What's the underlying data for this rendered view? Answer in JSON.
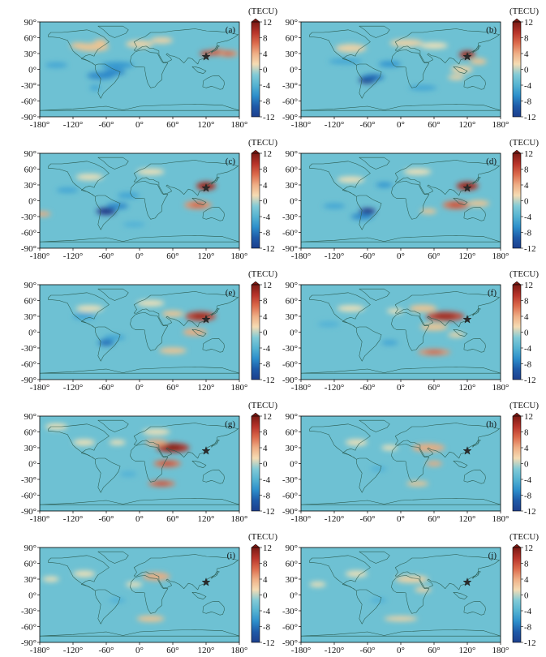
{
  "figure": {
    "colorbar_label": "(TECU)",
    "colorbar_ticks": [
      12,
      8,
      4,
      0,
      -4,
      -8,
      -12
    ],
    "colorbar_colors": [
      "#7a1a14",
      "#b8342a",
      "#dc6a4c",
      "#efae85",
      "#f5dcb4",
      "#82cbd7",
      "#55b3d2",
      "#2d8fcb",
      "#1e5aa8",
      "#1d3f8d"
    ],
    "map_background": "#6ec1d3",
    "coastline_color": "#2a5a4e",
    "epicenter_marker": "star",
    "x_ticks": [
      "-180°",
      "-120°",
      "-60°",
      "0°",
      "60°",
      "120°",
      "180°"
    ],
    "y_ticks": [
      "90°",
      "60°",
      "30°",
      "0°",
      "-30°",
      "-60°",
      "-90°"
    ]
  },
  "chart_data": [
    {
      "type": "heatmap",
      "panel": "(a)",
      "xlabel": "",
      "ylabel": "",
      "xlim": [
        -180,
        180
      ],
      "ylim": [
        -90,
        90
      ],
      "clim": [
        -12,
        12
      ],
      "epicenter": [
        120,
        24
      ],
      "blobs": [
        [
          -85,
          42,
          30,
          8,
          4
        ],
        [
          -110,
          45,
          15,
          6,
          4
        ],
        [
          -70,
          52,
          12,
          5,
          4
        ],
        [
          0,
          48,
          25,
          7,
          3
        ],
        [
          40,
          55,
          20,
          6,
          3
        ],
        [
          -40,
          8,
          30,
          6,
          -4
        ],
        [
          -70,
          -12,
          25,
          7,
          -5
        ],
        [
          -45,
          -5,
          20,
          6,
          -5
        ],
        [
          -150,
          8,
          20,
          5,
          -3
        ],
        [
          140,
          32,
          20,
          6,
          7
        ],
        [
          160,
          30,
          18,
          6,
          6
        ],
        [
          120,
          30,
          12,
          5,
          8
        ],
        [
          -80,
          -35,
          10,
          5,
          -3
        ]
      ]
    },
    {
      "type": "heatmap",
      "panel": "(b)",
      "xlabel": "",
      "ylabel": "",
      "xlim": [
        -180,
        180
      ],
      "ylim": [
        -90,
        90
      ],
      "clim": [
        -12,
        12
      ],
      "epicenter": [
        120,
        24
      ],
      "blobs": [
        [
          -90,
          40,
          28,
          8,
          3
        ],
        [
          10,
          50,
          30,
          7,
          3
        ],
        [
          60,
          45,
          25,
          6,
          2
        ],
        [
          120,
          28,
          15,
          7,
          10
        ],
        [
          140,
          15,
          15,
          6,
          4
        ],
        [
          110,
          0,
          20,
          7,
          3
        ],
        [
          100,
          -15,
          15,
          5,
          3
        ],
        [
          -60,
          -20,
          15,
          7,
          -11
        ],
        [
          -50,
          -15,
          20,
          6,
          -6
        ],
        [
          -20,
          10,
          20,
          6,
          -4
        ],
        [
          -100,
          15,
          30,
          5,
          -3
        ],
        [
          40,
          -35,
          25,
          5,
          -3
        ]
      ]
    },
    {
      "type": "heatmap",
      "panel": "(c)",
      "xlabel": "",
      "ylabel": "",
      "xlim": [
        -180,
        180
      ],
      "ylim": [
        -90,
        90
      ],
      "clim": [
        -12,
        12
      ],
      "epicenter": [
        120,
        24
      ],
      "blobs": [
        [
          120,
          28,
          18,
          8,
          10
        ],
        [
          105,
          -8,
          25,
          8,
          6
        ],
        [
          -60,
          -20,
          18,
          7,
          -10
        ],
        [
          -40,
          -10,
          20,
          6,
          -5
        ],
        [
          -175,
          -25,
          15,
          5,
          5
        ],
        [
          -90,
          45,
          25,
          6,
          2
        ],
        [
          20,
          55,
          25,
          6,
          2
        ],
        [
          -130,
          20,
          20,
          5,
          -3
        ],
        [
          -20,
          10,
          20,
          6,
          -3
        ],
        [
          -10,
          -45,
          20,
          5,
          -2
        ]
      ]
    },
    {
      "type": "heatmap",
      "panel": "(d)",
      "xlabel": "",
      "ylabel": "",
      "xlim": [
        -180,
        180
      ],
      "ylim": [
        -90,
        90
      ],
      "clim": [
        -12,
        12
      ],
      "epicenter": [
        120,
        24
      ],
      "blobs": [
        [
          120,
          28,
          20,
          8,
          10
        ],
        [
          100,
          -8,
          25,
          8,
          7
        ],
        [
          140,
          -5,
          20,
          6,
          4
        ],
        [
          -60,
          -20,
          15,
          6,
          -10
        ],
        [
          -70,
          -30,
          20,
          6,
          -5
        ],
        [
          -30,
          30,
          15,
          5,
          -4
        ],
        [
          50,
          -20,
          15,
          5,
          4
        ],
        [
          -90,
          40,
          25,
          6,
          2
        ],
        [
          30,
          55,
          25,
          6,
          2
        ],
        [
          -120,
          -10,
          20,
          5,
          -3
        ]
      ]
    },
    {
      "type": "heatmap",
      "panel": "(e)",
      "xlabel": "",
      "ylabel": "",
      "xlim": [
        -180,
        180
      ],
      "ylim": [
        -90,
        90
      ],
      "clim": [
        -12,
        12
      ],
      "epicenter": [
        120,
        24
      ],
      "blobs": [
        [
          110,
          30,
          28,
          9,
          9
        ],
        [
          60,
          35,
          20,
          6,
          4
        ],
        [
          100,
          0,
          22,
          7,
          5
        ],
        [
          60,
          -35,
          25,
          6,
          4
        ],
        [
          -60,
          -20,
          15,
          6,
          -6
        ],
        [
          -100,
          30,
          20,
          6,
          -3
        ],
        [
          -90,
          45,
          25,
          6,
          2
        ],
        [
          20,
          55,
          25,
          6,
          2
        ],
        [
          -45,
          -10,
          20,
          5,
          -3
        ]
      ]
    },
    {
      "type": "heatmap",
      "panel": "(f)",
      "xlabel": "",
      "ylabel": "",
      "xlim": [
        -180,
        180
      ],
      "ylim": [
        -90,
        90
      ],
      "clim": [
        -12,
        12
      ],
      "epicenter": [
        120,
        24
      ],
      "blobs": [
        [
          80,
          30,
          35,
          9,
          9
        ],
        [
          40,
          45,
          25,
          7,
          4
        ],
        [
          60,
          10,
          25,
          7,
          4
        ],
        [
          60,
          -38,
          30,
          6,
          6
        ],
        [
          -90,
          45,
          25,
          6,
          2
        ],
        [
          -10,
          40,
          15,
          5,
          2
        ],
        [
          100,
          -5,
          15,
          5,
          3
        ],
        [
          -20,
          -20,
          15,
          5,
          -3
        ],
        [
          -130,
          15,
          20,
          5,
          -2
        ]
      ]
    },
    {
      "type": "heatmap",
      "panel": "(g)",
      "xlabel": "",
      "ylabel": "",
      "xlim": [
        -180,
        180
      ],
      "ylim": [
        -90,
        90
      ],
      "clim": [
        -12,
        12
      ],
      "epicenter": [
        120,
        24
      ],
      "blobs": [
        [
          60,
          30,
          30,
          9,
          10
        ],
        [
          30,
          40,
          20,
          6,
          5
        ],
        [
          50,
          0,
          25,
          7,
          7
        ],
        [
          40,
          -38,
          25,
          6,
          7
        ],
        [
          -100,
          40,
          20,
          6,
          2
        ],
        [
          -150,
          70,
          20,
          6,
          2
        ],
        [
          30,
          60,
          25,
          6,
          2
        ],
        [
          -40,
          40,
          15,
          5,
          2
        ],
        [
          -20,
          -20,
          15,
          5,
          -2
        ]
      ]
    },
    {
      "type": "heatmap",
      "panel": "(h)",
      "xlabel": "",
      "ylabel": "",
      "xlim": [
        -180,
        180
      ],
      "ylim": [
        -90,
        90
      ],
      "clim": [
        -12,
        12
      ],
      "epicenter": [
        120,
        24
      ],
      "blobs": [
        [
          50,
          30,
          30,
          8,
          5
        ],
        [
          60,
          0,
          15,
          5,
          5
        ],
        [
          30,
          -38,
          20,
          5,
          4
        ],
        [
          -80,
          40,
          20,
          6,
          2
        ],
        [
          -20,
          30,
          15,
          5,
          2
        ],
        [
          -40,
          -10,
          15,
          5,
          -2
        ]
      ]
    },
    {
      "type": "heatmap",
      "panel": "(i)",
      "xlabel": "",
      "ylabel": "",
      "xlim": [
        -180,
        180
      ],
      "ylim": [
        -90,
        90
      ],
      "clim": [
        -12,
        12
      ],
      "epicenter": [
        120,
        24
      ],
      "blobs": [
        [
          30,
          35,
          25,
          8,
          5
        ],
        [
          20,
          -45,
          25,
          6,
          4
        ],
        [
          -10,
          20,
          15,
          5,
          2
        ],
        [
          -100,
          40,
          20,
          6,
          2
        ],
        [
          -160,
          30,
          15,
          5,
          2
        ],
        [
          -40,
          -10,
          15,
          5,
          -2
        ]
      ]
    },
    {
      "type": "heatmap",
      "panel": "(j)",
      "xlabel": "",
      "ylabel": "",
      "xlim": [
        -180,
        180
      ],
      "ylim": [
        -90,
        90
      ],
      "clim": [
        -12,
        12
      ],
      "epicenter": [
        120,
        24
      ],
      "blobs": [
        [
          20,
          30,
          30,
          7,
          3
        ],
        [
          40,
          10,
          15,
          5,
          3
        ],
        [
          0,
          -45,
          30,
          5,
          3
        ],
        [
          -80,
          40,
          20,
          6,
          2
        ],
        [
          -150,
          20,
          15,
          5,
          2
        ],
        [
          -40,
          -10,
          15,
          5,
          -2
        ]
      ]
    }
  ]
}
